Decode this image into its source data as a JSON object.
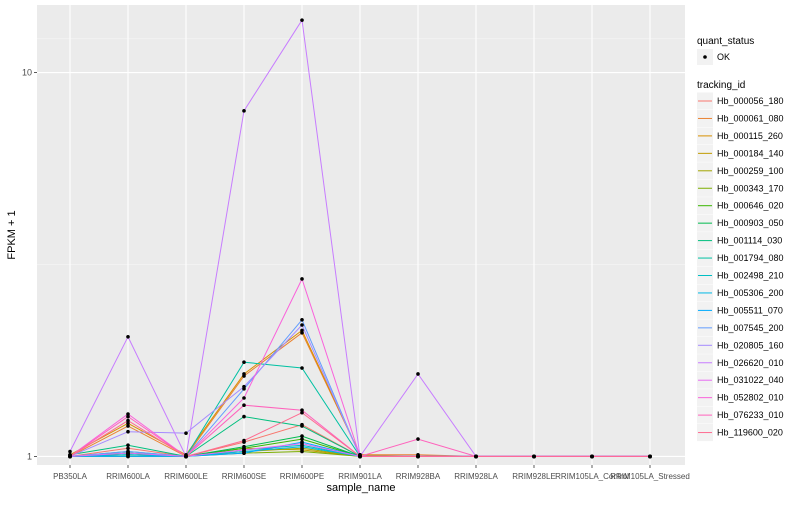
{
  "chart_data": {
    "type": "line",
    "title": "",
    "xlabel": "sample_name",
    "ylabel": "FPKM + 1",
    "y_scale": "log10",
    "ylim": [
      0.95,
      15.0
    ],
    "y_ticks": [
      {
        "value": 1,
        "label": "1"
      },
      {
        "value": 10,
        "label": "10"
      }
    ],
    "grid": true,
    "legend_position": "right",
    "categories": [
      "PB350LA",
      "RRIM600LA",
      "RRIM600LE",
      "RRIM600SE",
      "RRIM600PE",
      "RRIM901LA",
      "RRIM928BA",
      "RRIM928LA",
      "RRIM928LE",
      "RRIM105LA_Control",
      "RRIM105LA_Stressed"
    ],
    "quant_status": {
      "title": "quant_status",
      "entries": [
        "OK"
      ]
    },
    "legend_title": "tracking_id",
    "series": [
      {
        "name": "Hb_000056_180",
        "color": "#F8766D",
        "values": [
          1.0,
          1.05,
          1.0,
          1.09,
          1.21,
          1.0,
          1.0,
          1.0,
          1.0,
          1.0,
          1.0
        ]
      },
      {
        "name": "Hb_000061_080",
        "color": "#EA8331",
        "values": [
          1.0,
          1.2,
          1.0,
          1.62,
          2.1,
          1.01,
          1.01,
          1.0,
          1.0,
          1.0,
          1.0
        ]
      },
      {
        "name": "Hb_000115_260",
        "color": "#D89000",
        "values": [
          1.01,
          1.22,
          1.01,
          1.64,
          2.13,
          1.01,
          1.0,
          1.0,
          1.0,
          1.0,
          1.0
        ]
      },
      {
        "name": "Hb_000184_140",
        "color": "#C09B00",
        "values": [
          1.0,
          1.02,
          1.0,
          1.05,
          1.04,
          1.0,
          1.0,
          1.0,
          1.0,
          1.0,
          1.0
        ]
      },
      {
        "name": "Hb_000259_100",
        "color": "#A3A500",
        "values": [
          1.0,
          1.01,
          1.0,
          1.03,
          1.05,
          1.0,
          1.0,
          1.0,
          1.0,
          1.0,
          1.0
        ]
      },
      {
        "name": "Hb_000343_170",
        "color": "#7CAE00",
        "values": [
          1.0,
          1.0,
          1.0,
          1.02,
          1.03,
          1.0,
          1.0,
          1.0,
          1.0,
          1.0,
          1.0
        ]
      },
      {
        "name": "Hb_000646_020",
        "color": "#39B600",
        "values": [
          1.0,
          1.02,
          1.0,
          1.05,
          1.11,
          1.0,
          1.0,
          1.0,
          1.0,
          1.0,
          1.0
        ]
      },
      {
        "name": "Hb_000903_050",
        "color": "#00BB4E",
        "values": [
          1.0,
          1.01,
          1.0,
          1.06,
          1.13,
          1.0,
          1.0,
          1.0,
          1.0,
          1.0,
          1.0
        ]
      },
      {
        "name": "Hb_001114_030",
        "color": "#00BF7D",
        "values": [
          1.01,
          1.07,
          1.0,
          1.27,
          1.2,
          1.0,
          1.0,
          1.0,
          1.0,
          1.0,
          1.0
        ]
      },
      {
        "name": "Hb_001794_080",
        "color": "#00C1A3",
        "values": [
          1.0,
          1.03,
          1.0,
          1.76,
          1.7,
          1.0,
          1.0,
          1.0,
          1.0,
          1.0,
          1.0
        ]
      },
      {
        "name": "Hb_002498_210",
        "color": "#00BFC4",
        "values": [
          1.0,
          1.02,
          1.0,
          1.04,
          1.07,
          1.0,
          1.0,
          1.0,
          1.0,
          1.0,
          1.0
        ]
      },
      {
        "name": "Hb_005306_200",
        "color": "#00B8E5",
        "values": [
          1.0,
          1.01,
          1.0,
          1.03,
          1.06,
          1.0,
          1.0,
          1.0,
          1.0,
          1.0,
          1.0
        ]
      },
      {
        "name": "Hb_005511_070",
        "color": "#00ABFD",
        "values": [
          1.0,
          1.0,
          1.0,
          1.02,
          1.09,
          1.0,
          1.0,
          1.0,
          1.0,
          1.0,
          1.0
        ]
      },
      {
        "name": "Hb_007545_200",
        "color": "#619CFF",
        "values": [
          1.0,
          1.03,
          1.0,
          1.5,
          2.27,
          1.0,
          1.0,
          1.0,
          1.0,
          1.0,
          1.0
        ]
      },
      {
        "name": "Hb_020805_160",
        "color": "#A58AFF",
        "values": [
          1.0,
          1.16,
          1.15,
          1.52,
          2.2,
          1.0,
          1.0,
          1.0,
          1.0,
          1.0,
          1.0
        ]
      },
      {
        "name": "Hb_026620_010",
        "color": "#C77CFF",
        "values": [
          1.03,
          2.05,
          1.0,
          7.95,
          13.7,
          1.0,
          1.64,
          1.0,
          1.0,
          1.0,
          1.0
        ]
      },
      {
        "name": "Hb_031022_040",
        "color": "#E76BF3",
        "values": [
          1.0,
          1.02,
          1.0,
          1.04,
          1.08,
          1.0,
          1.0,
          1.0,
          1.0,
          1.0,
          1.0
        ]
      },
      {
        "name": "Hb_052802_010",
        "color": "#FA62DB",
        "values": [
          1.0,
          1.29,
          1.0,
          1.42,
          2.9,
          1.0,
          1.0,
          1.0,
          1.0,
          1.0,
          1.0
        ]
      },
      {
        "name": "Hb_076233_010",
        "color": "#FF62BC",
        "values": [
          1.0,
          1.27,
          1.0,
          1.36,
          1.32,
          1.0,
          1.11,
          1.0,
          1.0,
          1.0,
          1.0
        ]
      },
      {
        "name": "Hb_119600_020",
        "color": "#FF6C91",
        "values": [
          1.0,
          1.24,
          1.0,
          1.1,
          1.3,
          1.0,
          1.0,
          1.0,
          1.0,
          1.0,
          1.0
        ]
      }
    ]
  }
}
